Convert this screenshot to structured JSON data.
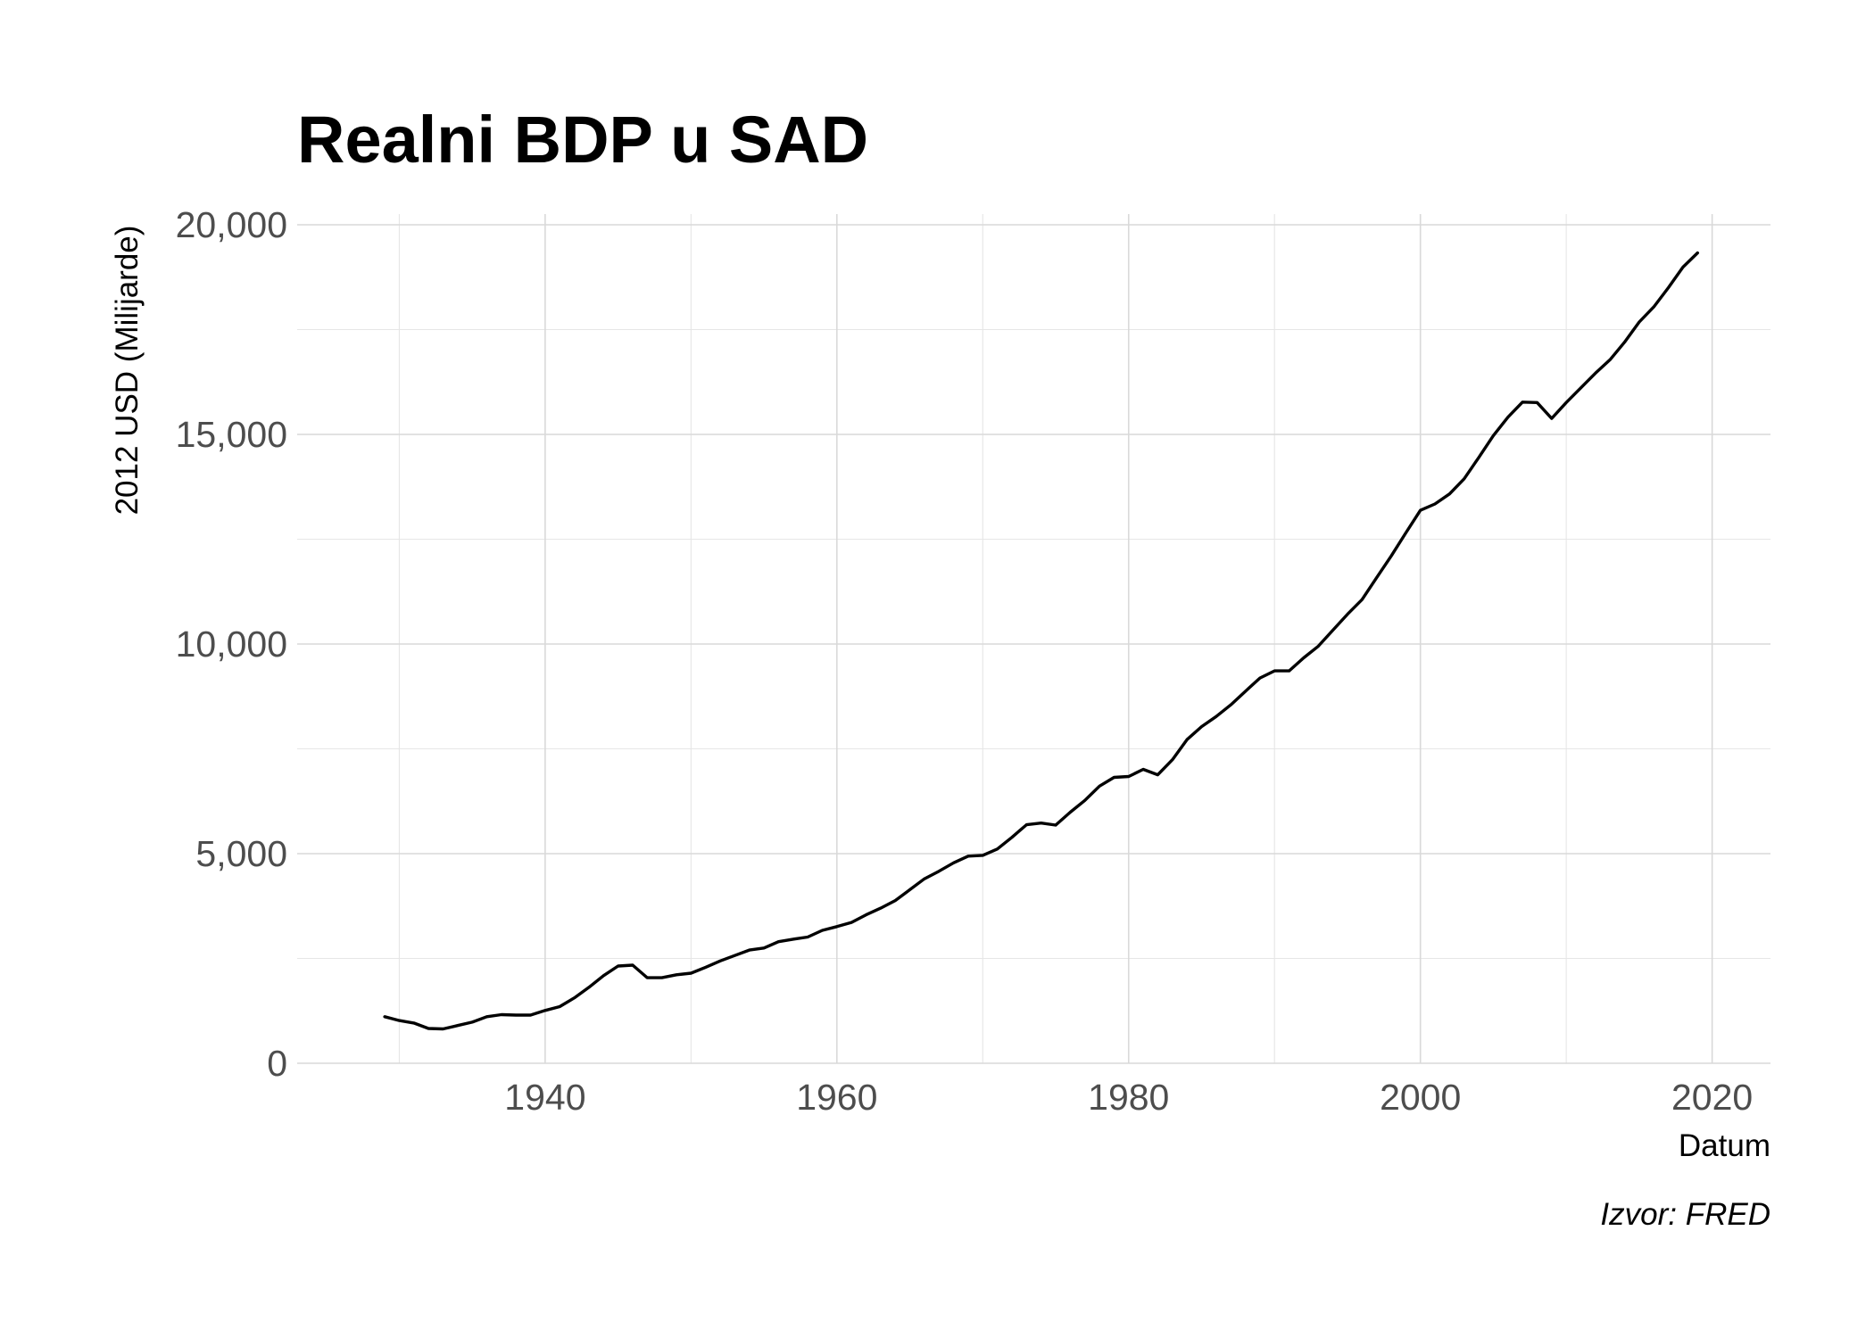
{
  "chart_data": {
    "type": "line",
    "title": "Realni BDP u SAD",
    "xlabel": "Datum",
    "ylabel": "2012 USD (Milijarde)",
    "caption": "Izvor: FRED",
    "xlim": [
      1923,
      2024
    ],
    "ylim": [
      0,
      20250
    ],
    "x_ticks": [
      1940,
      1960,
      1980,
      2000,
      2020
    ],
    "x_tick_labels": [
      "1940",
      "1960",
      "1980",
      "2000",
      "2020"
    ],
    "x_minor_ticks": [
      1930,
      1950,
      1970,
      1990,
      2010
    ],
    "y_ticks": [
      0,
      5000,
      10000,
      15000,
      20000
    ],
    "y_tick_labels": [
      "0",
      "5,000",
      "10,000",
      "15,000",
      "20,000"
    ],
    "y_minor_ticks": [
      2500,
      7500,
      12500,
      17500
    ],
    "grid": true,
    "legend": "none",
    "line_color": "#000000",
    "series": [
      {
        "x": [
          1929,
          1930,
          1931,
          1932,
          1933,
          1934,
          1935,
          1936,
          1937,
          1938,
          1939,
          1940,
          1941,
          1942,
          1943,
          1944,
          1945,
          1946,
          1947,
          1948,
          1949,
          1950,
          1951,
          1952,
          1953,
          1954,
          1955,
          1956,
          1957,
          1958,
          1959,
          1960,
          1961,
          1962,
          1963,
          1964,
          1965,
          1966,
          1967,
          1968,
          1969,
          1970,
          1971,
          1972,
          1973,
          1974,
          1975,
          1976,
          1977,
          1978,
          1979,
          1980,
          1981,
          1982,
          1983,
          1984,
          1985,
          1986,
          1987,
          1988,
          1989,
          1990,
          1991,
          1992,
          1993,
          1994,
          1995,
          1996,
          1997,
          1998,
          1999,
          2000,
          2001,
          2002,
          2003,
          2004,
          2005,
          2006,
          2007,
          2008,
          2009,
          2010,
          2011,
          2012,
          2013,
          2014,
          2015,
          2016,
          2017,
          2018,
          2019
        ],
        "values": [
          1110,
          1020,
          960,
          830,
          820,
          900,
          980,
          1110,
          1160,
          1150,
          1150,
          1260,
          1350,
          1560,
          1810,
          2090,
          2320,
          2340,
          2040,
          2040,
          2110,
          2150,
          2290,
          2440,
          2570,
          2700,
          2750,
          2900,
          2960,
          3010,
          3170,
          3260,
          3360,
          3540,
          3700,
          3880,
          4140,
          4400,
          4580,
          4780,
          4940,
          4960,
          5110,
          5390,
          5690,
          5730,
          5680,
          5990,
          6270,
          6610,
          6820,
          6840,
          7010,
          6880,
          7240,
          7720,
          8030,
          8270,
          8550,
          8870,
          9190,
          9360,
          9360,
          9670,
          9950,
          10330,
          10710,
          11060,
          11580,
          12100,
          12650,
          13190,
          13340,
          13580,
          13940,
          14450,
          14970,
          15410,
          15770,
          15760,
          15380,
          15760,
          16110,
          16460,
          16780,
          17200,
          17680,
          18040,
          18500,
          18990,
          19330
        ]
      }
    ]
  }
}
